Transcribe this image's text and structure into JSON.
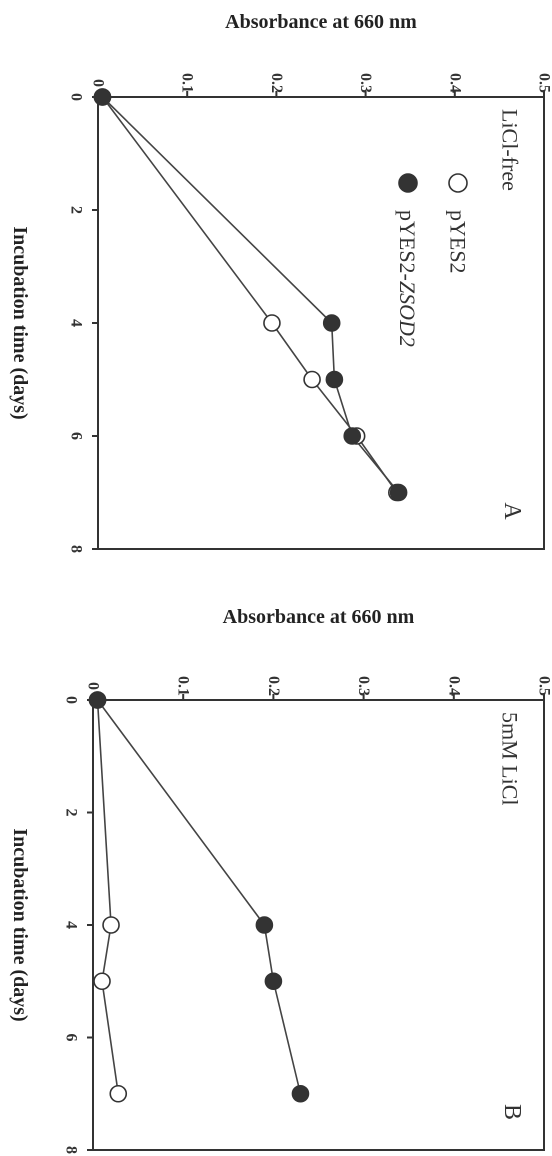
{
  "chart_data": [
    {
      "type": "line",
      "panel_letter": "A",
      "condition": "LiCl-free",
      "xlabel": "Incubation time (days)",
      "ylabel": "Absorbance at 660 nm",
      "xlim": [
        0,
        8
      ],
      "ylim": [
        0,
        0.5
      ],
      "x_ticks": [
        "0",
        "2",
        "4",
        "6",
        "8"
      ],
      "y_ticks": [
        "0",
        "0.1",
        "0.2",
        "0.3",
        "0.4",
        "0.5"
      ],
      "legend_position": "top-right",
      "series": [
        {
          "name": "pYES2",
          "name_prefix": "pYES2",
          "name_italic": "",
          "marker": "open-circle",
          "x": [
            0,
            4,
            5,
            6,
            7
          ],
          "y": [
            0.005,
            0.195,
            0.24,
            0.29,
            0.335
          ]
        },
        {
          "name": "pYES2-ZSOD2",
          "name_prefix": "pYES2-",
          "name_italic": "ZSOD2",
          "marker": "filled-circle",
          "x": [
            0,
            4,
            5,
            6,
            7
          ],
          "y": [
            0.005,
            0.262,
            0.265,
            0.285,
            0.337
          ]
        }
      ]
    },
    {
      "type": "line",
      "panel_letter": "B",
      "condition": "5mM LiCl",
      "xlabel": "Incubation time (days)",
      "ylabel": "Absorbance at 660 nm",
      "xlim": [
        0,
        8
      ],
      "ylim": [
        0,
        0.5
      ],
      "x_ticks": [
        "0",
        "2",
        "4",
        "6",
        "8"
      ],
      "y_ticks": [
        "0",
        "0.1",
        "0.2",
        "0.3",
        "0.4",
        "0.5"
      ],
      "series": [
        {
          "name": "pYES2",
          "marker": "open-circle",
          "x": [
            0,
            4,
            5,
            7
          ],
          "y": [
            0.005,
            0.02,
            0.01,
            0.028
          ]
        },
        {
          "name": "pYES2-ZSOD2",
          "marker": "filled-circle",
          "x": [
            0,
            4,
            5,
            7
          ],
          "y": [
            0.005,
            0.19,
            0.2,
            0.23
          ]
        }
      ]
    }
  ],
  "colors": {
    "axis": "#333333",
    "line": "#444444",
    "filled_marker": "#333333",
    "open_marker_fill": "#ffffff"
  }
}
